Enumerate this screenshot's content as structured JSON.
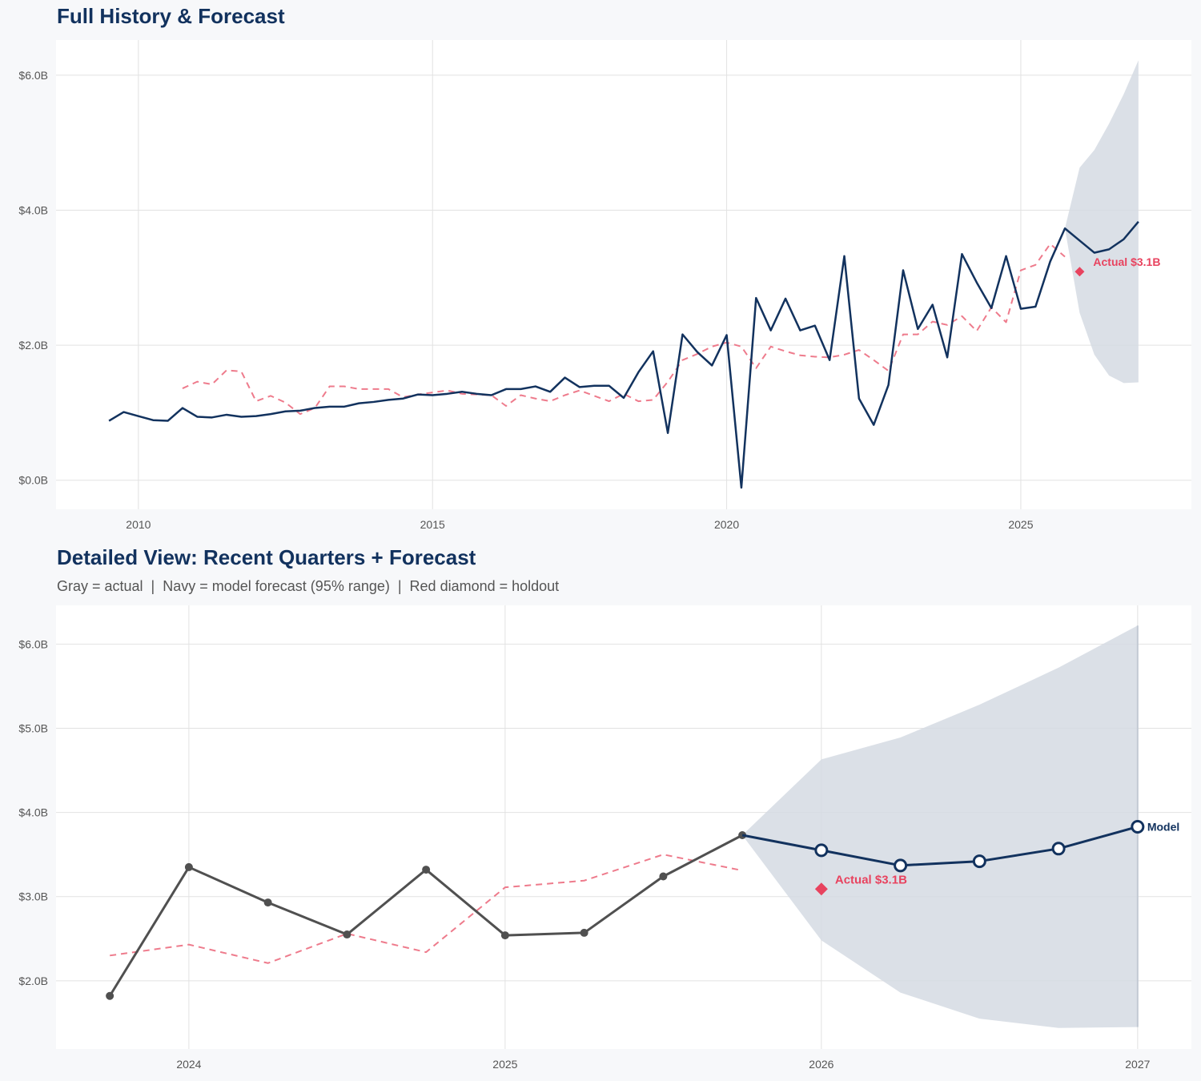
{
  "colors": {
    "navy": "#12325e",
    "red": "#e8435f",
    "red_dashed": "#ee7b8c",
    "gray_actual": "#505050",
    "band": "#d5dbe3",
    "grid": "#e2e2e2",
    "background": "#f7f8fa"
  },
  "chart_data": [
    {
      "type": "line",
      "title": "Full History & Forecast",
      "xlim": [
        2008.6,
        2027.9
      ],
      "ylim": [
        -0.43,
        6.52
      ],
      "grid": true,
      "x_ticks": [
        2010,
        2015,
        2020,
        2025
      ],
      "x_tick_labels": [
        "2010",
        "2015",
        "2020",
        "2025"
      ],
      "y_ticks": [
        0,
        2,
        4,
        6
      ],
      "y_tick_labels": [
        "$0.0B",
        "$2.0B",
        "$4.0B",
        "$6.0B"
      ],
      "series": [
        {
          "style": "navy-solid",
          "x": [
            2009.5,
            2009.75,
            2010,
            2010.25,
            2010.5,
            2010.75,
            2011,
            2011.25,
            2011.5,
            2011.75,
            2012,
            2012.25,
            2012.5,
            2012.75,
            2013,
            2013.25,
            2013.5,
            2013.75,
            2014,
            2014.25,
            2014.5,
            2014.75,
            2015,
            2015.25,
            2015.5,
            2015.75,
            2016,
            2016.25,
            2016.5,
            2016.75,
            2017,
            2017.25,
            2017.5,
            2017.75,
            2018,
            2018.25,
            2018.5,
            2018.75,
            2019,
            2019.25,
            2019.5,
            2019.75,
            2020,
            2020.25,
            2020.5,
            2020.75,
            2021,
            2021.25,
            2021.5,
            2021.75,
            2022,
            2022.25,
            2022.5,
            2022.75,
            2023,
            2023.25,
            2023.5,
            2023.75,
            2024,
            2024.25,
            2024.5,
            2024.75,
            2025,
            2025.25,
            2025.5,
            2025.75,
            2026,
            2026.25,
            2026.5,
            2026.75,
            2027
          ],
          "y": [
            0.88,
            1.01,
            0.95,
            0.89,
            0.88,
            1.07,
            0.94,
            0.93,
            0.97,
            0.94,
            0.95,
            0.98,
            1.02,
            1.03,
            1.07,
            1.09,
            1.09,
            1.14,
            1.16,
            1.19,
            1.21,
            1.27,
            1.26,
            1.28,
            1.31,
            1.28,
            1.26,
            1.35,
            1.35,
            1.39,
            1.31,
            1.52,
            1.38,
            1.4,
            1.4,
            1.22,
            1.6,
            1.91,
            0.7,
            2.16,
            1.9,
            1.7,
            2.15,
            -0.11,
            2.7,
            2.22,
            2.69,
            2.22,
            2.29,
            1.78,
            3.32,
            1.21,
            0.82,
            1.41,
            3.11,
            2.24,
            2.6,
            1.82,
            3.35,
            2.93,
            2.55,
            3.32,
            2.54,
            2.57,
            3.24,
            3.73,
            3.55,
            3.37,
            3.42,
            3.57,
            3.83
          ]
        },
        {
          "style": "red-dashed",
          "x": [
            2010.75,
            2011,
            2011.25,
            2011.5,
            2011.75,
            2012,
            2012.25,
            2012.5,
            2012.75,
            2013,
            2013.25,
            2013.5,
            2013.75,
            2014,
            2014.25,
            2014.5,
            2014.75,
            2015,
            2015.25,
            2015.5,
            2015.75,
            2016,
            2016.25,
            2016.5,
            2016.75,
            2017,
            2017.25,
            2017.5,
            2017.75,
            2018,
            2018.25,
            2018.5,
            2018.75,
            2019,
            2019.25,
            2019.5,
            2019.75,
            2020,
            2020.25,
            2020.5,
            2020.75,
            2021,
            2021.25,
            2021.5,
            2021.75,
            2022,
            2022.25,
            2022.5,
            2022.75,
            2023,
            2023.25,
            2023.5,
            2023.75,
            2024,
            2024.25,
            2024.5,
            2024.75,
            2025,
            2025.25,
            2025.5,
            2025.75
          ],
          "y": [
            1.36,
            1.46,
            1.42,
            1.63,
            1.61,
            1.17,
            1.25,
            1.15,
            0.98,
            1.07,
            1.39,
            1.39,
            1.35,
            1.35,
            1.35,
            1.23,
            1.27,
            1.3,
            1.33,
            1.28,
            1.27,
            1.26,
            1.1,
            1.26,
            1.21,
            1.17,
            1.26,
            1.33,
            1.25,
            1.17,
            1.28,
            1.17,
            1.19,
            1.46,
            1.78,
            1.87,
            1.98,
            2.04,
            1.98,
            1.66,
            1.98,
            1.91,
            1.85,
            1.83,
            1.82,
            1.86,
            1.93,
            1.78,
            1.62,
            2.16,
            2.16,
            2.35,
            2.3,
            2.43,
            2.21,
            2.56,
            2.34,
            3.11,
            3.19,
            3.5,
            3.31
          ]
        }
      ],
      "band": {
        "x": [
          2025.75,
          2026,
          2026.25,
          2026.5,
          2026.75,
          2027
        ],
        "lower": [
          3.73,
          2.48,
          1.86,
          1.55,
          1.44,
          1.45
        ],
        "upper": [
          3.73,
          4.63,
          4.89,
          5.28,
          5.72,
          6.22
        ]
      },
      "holdout": {
        "x": 2026.0,
        "y": 3.09,
        "label": "Actual $3.1B"
      }
    },
    {
      "type": "line",
      "title": "Detailed View: Recent Quarters + Forecast",
      "subtitle": "Gray = actual  |  Navy = model forecast (95% range)  |  Red diamond = holdout",
      "xlim": [
        2023.58,
        2027.17
      ],
      "ylim": [
        1.19,
        6.46
      ],
      "grid": true,
      "x_ticks": [
        2024,
        2025,
        2026,
        2027
      ],
      "x_tick_labels": [
        "2024",
        "2025",
        "2026",
        "2027"
      ],
      "y_ticks": [
        2,
        3,
        4,
        5,
        6
      ],
      "y_tick_labels": [
        "$2.0B",
        "$3.0B",
        "$4.0B",
        "$5.0B",
        "$6.0B"
      ],
      "series": [
        {
          "style": "gray-actual",
          "x": [
            2023.75,
            2024,
            2024.25,
            2024.5,
            2024.75,
            2025,
            2025.25,
            2025.5,
            2025.75
          ],
          "y": [
            1.82,
            3.35,
            2.93,
            2.55,
            3.32,
            2.54,
            2.57,
            3.24,
            3.73
          ]
        },
        {
          "style": "navy-forecast",
          "x": [
            2025.75,
            2026,
            2026.25,
            2026.5,
            2026.75,
            2027
          ],
          "y": [
            3.73,
            3.55,
            3.37,
            3.42,
            3.57,
            3.83
          ],
          "label": "Model"
        },
        {
          "style": "red-dashed",
          "x": [
            2023.75,
            2024,
            2024.25,
            2024.5,
            2024.75,
            2025,
            2025.25,
            2025.5,
            2025.75
          ],
          "y": [
            2.3,
            2.43,
            2.21,
            2.56,
            2.34,
            3.11,
            3.19,
            3.5,
            3.31
          ]
        }
      ],
      "band": {
        "x": [
          2025.75,
          2026,
          2026.25,
          2026.5,
          2026.75,
          2027
        ],
        "lower": [
          3.73,
          2.48,
          1.86,
          1.55,
          1.44,
          1.45
        ],
        "upper": [
          3.73,
          4.63,
          4.89,
          5.28,
          5.72,
          6.22
        ]
      },
      "holdout": {
        "x": 2026.0,
        "y": 3.09,
        "label": "Actual $3.1B"
      }
    }
  ]
}
